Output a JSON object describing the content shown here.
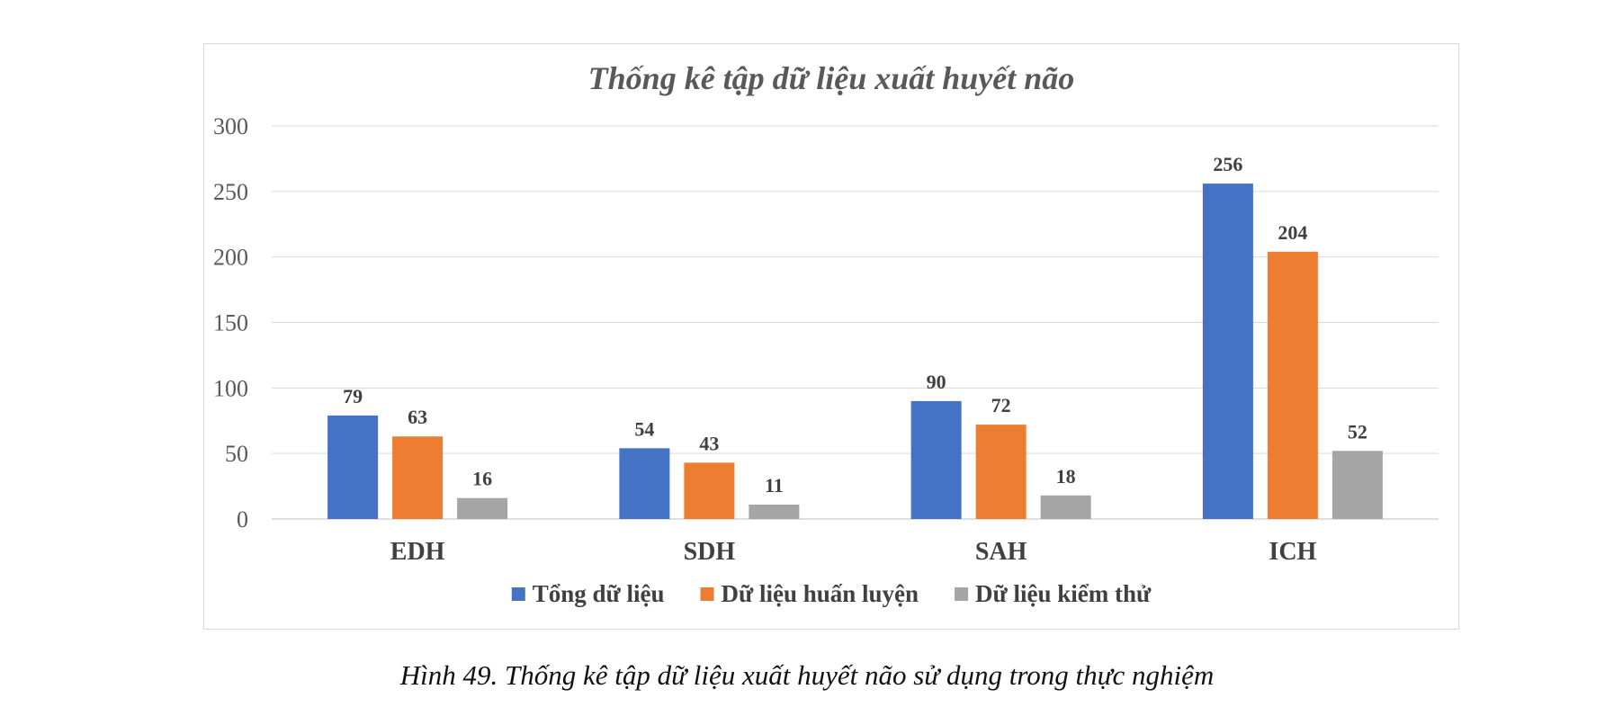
{
  "chart_data": {
    "type": "bar",
    "title": "Thống kê tập dữ liệu xuất huyết não",
    "categories": [
      "EDH",
      "SDH",
      "SAH",
      "ICH"
    ],
    "series": [
      {
        "name": "Tổng dữ liệu",
        "values": [
          79,
          54,
          90,
          256
        ],
        "color": "#4472C4"
      },
      {
        "name": "Dữ liệu huấn luyện",
        "values": [
          63,
          43,
          72,
          204
        ],
        "color": "#ED7D31"
      },
      {
        "name": "Dữ liệu kiểm thử",
        "values": [
          16,
          11,
          18,
          52
        ],
        "color": "#A5A5A5"
      }
    ],
    "ylim": [
      0,
      300
    ],
    "yticks": [
      0,
      50,
      100,
      150,
      200,
      250,
      300
    ],
    "grid": true,
    "legend": "bottom",
    "data_labels": true
  },
  "caption": "Hình 49. Thống kê tập dữ liệu xuất huyết não sử dụng trong thực nghiệm"
}
